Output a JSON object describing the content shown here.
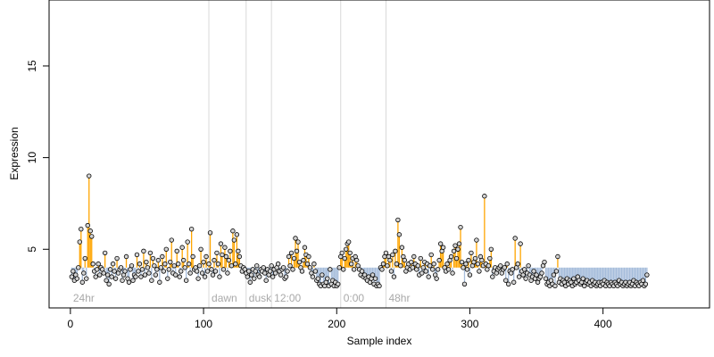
{
  "chart_data": {
    "type": "scatter",
    "xlabel": "Sample index",
    "ylabel": "Expression",
    "xlim": [
      -16,
      480
    ],
    "ylim": [
      1.8,
      18.6
    ],
    "xticks": [
      0,
      100,
      200,
      300,
      400
    ],
    "yticks": [
      5,
      10,
      15
    ],
    "baseline_y": 4.0,
    "colors": {
      "above": "#FFA500",
      "below": "#A6BDDB",
      "divider": "#D9D9D9",
      "region_label": "#A9A9A9",
      "point_fill": "#D3D3D3",
      "point_stroke": "#000000"
    },
    "region_markers": [
      {
        "label": "24hr",
        "x": 0
      },
      {
        "label": "dawn",
        "x": 104
      },
      {
        "label": "dusk",
        "x": 132
      },
      {
        "label": "12:00",
        "x": 151
      },
      {
        "label": "0:00",
        "x": 203
      },
      {
        "label": "48hr",
        "x": 237
      }
    ],
    "x_start": 1,
    "values": [
      3.5,
      3.8,
      3.3,
      3.6,
      3.4,
      4.0,
      5.4,
      6.1,
      3.2,
      3.7,
      4.5,
      3.4,
      6.3,
      9.0,
      6.0,
      5.7,
      4.2,
      3.8,
      3.5,
      3.9,
      4.2,
      3.6,
      4.0,
      3.9,
      3.7,
      4.8,
      3.3,
      3.6,
      3.1,
      3.9,
      3.5,
      4.2,
      3.8,
      3.4,
      4.5,
      3.7,
      3.9,
      4.0,
      3.3,
      3.6,
      3.8,
      4.6,
      3.4,
      3.2,
      3.9,
      4.1,
      3.3,
      3.6,
      3.5,
      4.7,
      3.8,
      4.2,
      3.5,
      3.9,
      4.9,
      3.6,
      4.3,
      4.0,
      3.7,
      4.8,
      3.3,
      4.5,
      4.1,
      3.6,
      3.9,
      4.4,
      3.2,
      4.0,
      4.6,
      3.8,
      4.2,
      5.0,
      3.4,
      3.9,
      4.3,
      5.5,
      3.7,
      4.1,
      3.6,
      4.9,
      4.2,
      3.5,
      3.8,
      5.1,
      4.4,
      4.0,
      3.3,
      5.4,
      4.2,
      3.7,
      6.1,
      4.6,
      3.9,
      4.0,
      3.8,
      3.4,
      4.1,
      5.0,
      3.7,
      4.3,
      3.5,
      4.6,
      3.8,
      4.2,
      5.9,
      3.9,
      3.6,
      4.4,
      3.8,
      4.8,
      4.2,
      3.5,
      5.3,
      4.7,
      3.9,
      5.1,
      4.6,
      3.7,
      4.4,
      4.9,
      4.1,
      6.0,
      5.5,
      4.2,
      5.8,
      4.9,
      4.6,
      4.1,
      3.8,
      4.0,
      3.9,
      3.7,
      3.5,
      3.8,
      3.2,
      3.6,
      3.9,
      3.4,
      3.8,
      4.1,
      3.6,
      3.5,
      3.9,
      3.8,
      4.0,
      3.7,
      3.3,
      3.9,
      3.6,
      3.8,
      4.1,
      3.5,
      3.9,
      3.7,
      4.0,
      4.2,
      3.8,
      3.6,
      3.9,
      4.0,
      3.4,
      3.5,
      3.8,
      4.6,
      4.1,
      4.8,
      3.9,
      4.5,
      5.6,
      4.9,
      5.4,
      4.3,
      4.0,
      3.8,
      4.4,
      5.1,
      4.7,
      4.2,
      4.6,
      4.0,
      3.7,
      3.5,
      4.2,
      3.8,
      3.3,
      3.4,
      3.1,
      3.0,
      3.6,
      3.1,
      3.0,
      3.2,
      3.4,
      3.0,
      3.9,
      3.1,
      3.3,
      3.0,
      3.2,
      3.0,
      3.1,
      4.0,
      4.6,
      4.8,
      3.9,
      4.5,
      5.0,
      5.3,
      5.4,
      4.8,
      4.2,
      4.5,
      3.9,
      4.6,
      4.4,
      4.1,
      3.9,
      3.6,
      3.8,
      3.5,
      3.6,
      3.4,
      3.3,
      3.5,
      3.2,
      3.4,
      3.6,
      3.1,
      3.4,
      3.0,
      3.1,
      3.0,
      4.0,
      3.9,
      4.2,
      4.6,
      4.8,
      4.1,
      4.6,
      4.4,
      3.8,
      4.7,
      3.5,
      4.9,
      4.2,
      6.6,
      5.8,
      4.1,
      5.1,
      4.6,
      4.4,
      3.8,
      4.0,
      4.2,
      3.9,
      4.3,
      4.0,
      4.6,
      4.2,
      3.9,
      4.1,
      3.6,
      4.5,
      3.7,
      4.0,
      4.3,
      3.8,
      4.2,
      3.5,
      4.1,
      4.7,
      3.9,
      4.2,
      3.6,
      3.4,
      3.9,
      4.4,
      5.3,
      4.9,
      5.1,
      4.0,
      3.8,
      4.2,
      3.9,
      4.4,
      4.6,
      3.7,
      4.9,
      5.2,
      4.5,
      5.0,
      5.3,
      6.2,
      4.3,
      4.0,
      3.1,
      4.2,
      3.9,
      4.4,
      3.6,
      4.8,
      4.1,
      4.3,
      4.5,
      5.5,
      4.2,
      3.8,
      4.6,
      4.4,
      4.1,
      7.9,
      4.2,
      3.9,
      4.1,
      4.5,
      5.0,
      3.5,
      3.8,
      4.0,
      3.7,
      3.9,
      4.0,
      4.1,
      3.7,
      3.9,
      4.0,
      3.3,
      4.2,
      3.1,
      3.8,
      3.7,
      3.9,
      3.2,
      5.6,
      4.0,
      4.2,
      3.5,
      5.3,
      3.8,
      3.6,
      3.9,
      3.4,
      3.7,
      4.1,
      3.6,
      3.3,
      3.5,
      3.8,
      3.4,
      3.6,
      3.2,
      3.4,
      3.5,
      3.7,
      4.1,
      4.3,
      3.4,
      3.1,
      3.2,
      3.0,
      3.3,
      3.1,
      3.6,
      3.0,
      3.8,
      4.6,
      3.2,
      3.4,
      3.1,
      3.3,
      3.2,
      3.0,
      3.4,
      3.1,
      3.3,
      3.2,
      3.0,
      3.4,
      3.1,
      3.2,
      3.5,
      3.3,
      3.1,
      3.2,
      3.4,
      3.0,
      3.2,
      3.3,
      3.1,
      3.2,
      3.0,
      3.3,
      3.1,
      3.2,
      3.0,
      3.1,
      3.2,
      3.0,
      3.2,
      3.1,
      3.3,
      3.0,
      3.2,
      3.1,
      3.0,
      3.2,
      3.1,
      3.0,
      3.2,
      3.1,
      3.0,
      3.3,
      3.1,
      3.2,
      3.0,
      3.1,
      3.2,
      3.0,
      3.1,
      3.2,
      3.0,
      3.1,
      3.3,
      3.0,
      3.2,
      3.1,
      3.0,
      3.2,
      3.1,
      3.3,
      3.0,
      3.1,
      3.6
    ]
  }
}
